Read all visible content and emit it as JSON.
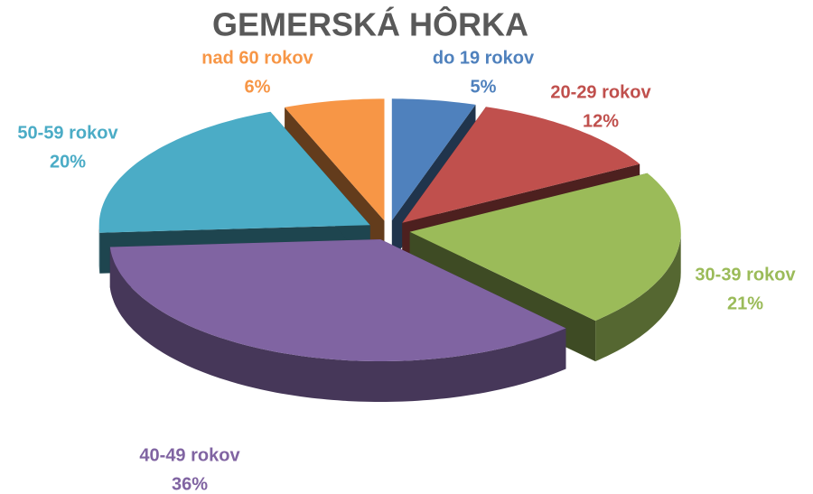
{
  "chart_data": {
    "type": "pie3d",
    "title": "GEMERSKÁ HÔRKA",
    "categories": [
      "do 19 rokov",
      "20-29 rokov",
      "30-39 rokov",
      "40-49 rokov",
      "50-59 rokov",
      "nad 60 rokov"
    ],
    "values": [
      5,
      12,
      21,
      36,
      20,
      6
    ],
    "value_labels": [
      "5%",
      "12%",
      "21%",
      "36%",
      "20%",
      "6%"
    ],
    "colors": [
      "#4f81bd",
      "#c0504d",
      "#9bbb59",
      "#8064a2",
      "#4bacc6",
      "#f79646"
    ]
  }
}
